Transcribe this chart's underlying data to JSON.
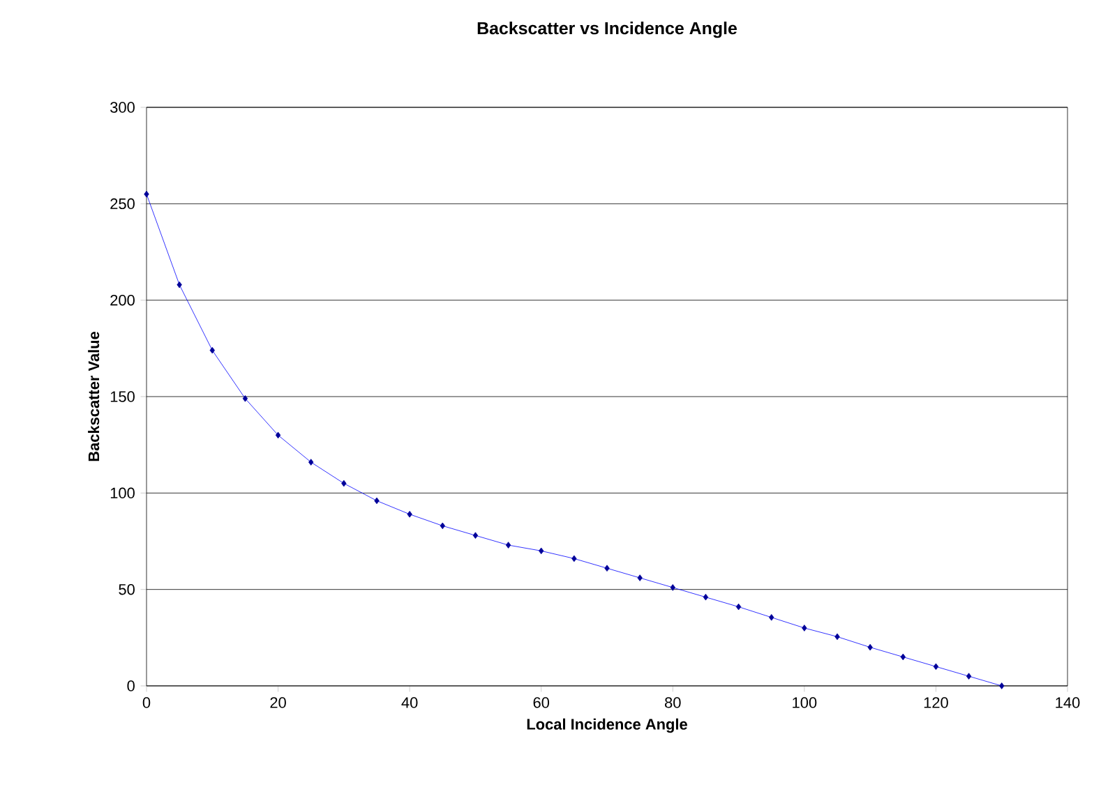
{
  "chart_data": {
    "type": "line",
    "title": "Backscatter vs Incidence Angle",
    "xlabel": "Local Incidence Angle",
    "ylabel": "Backscatter Value",
    "x": [
      0,
      5,
      10,
      15,
      20,
      25,
      30,
      35,
      40,
      45,
      50,
      55,
      60,
      65,
      70,
      75,
      80,
      85,
      90,
      95,
      100,
      105,
      110,
      115,
      120,
      125,
      130
    ],
    "series": [
      {
        "color": "#0000ff",
        "values": [
          255,
          208,
          174,
          149,
          130,
          116,
          105,
          96,
          89,
          83,
          78,
          73,
          70,
          66,
          61,
          56,
          51,
          46,
          41,
          35.5,
          30,
          25.5,
          20,
          15,
          10,
          5,
          0
        ]
      }
    ],
    "xlim": [
      0,
      140
    ],
    "xticks": [
      0,
      20,
      40,
      60,
      80,
      100,
      120,
      140
    ],
    "ylim": [
      0,
      300
    ],
    "yticks": [
      0,
      50,
      100,
      150,
      200,
      250,
      300
    ],
    "grid": "y",
    "marker": "diamond",
    "line_style": "solid"
  }
}
